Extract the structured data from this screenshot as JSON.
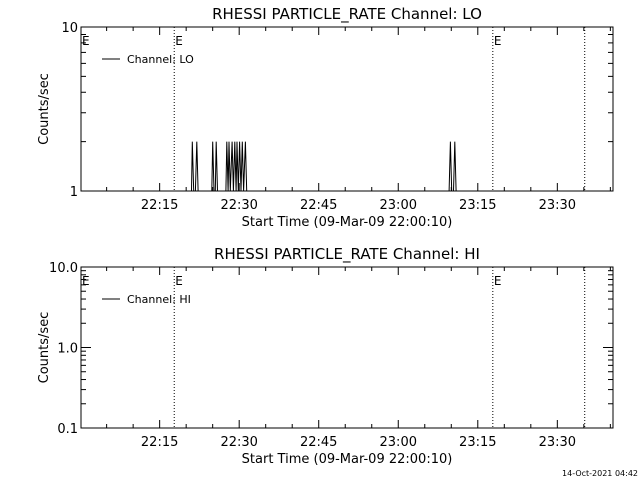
{
  "footer": {
    "timestamp": "14-Oct-2021 04:42"
  },
  "chart_data": [
    {
      "type": "line",
      "title": "RHESSI PARTICLE_RATE Channel: LO",
      "xlabel": "Start Time (09-Mar-09 22:00:10)",
      "ylabel": "Counts/sec",
      "y_scale": "log",
      "ylim": [
        1,
        10
      ],
      "y_ticks": [
        {
          "value": 1,
          "label": "1"
        },
        {
          "value": 10,
          "label": "10"
        }
      ],
      "xlim": [
        "22:00:10",
        "23:40:30"
      ],
      "x_ticks": [
        "22:15",
        "22:30",
        "22:45",
        "23:00",
        "23:15",
        "23:30"
      ],
      "legend": {
        "placement": "top-left",
        "label": "Channel: LO"
      },
      "markers": [
        {
          "time": "22:17:45",
          "label": "E"
        },
        {
          "time": "23:17:50",
          "label": "E"
        },
        {
          "time": "23:35:10",
          "label": ""
        }
      ],
      "edge_label": "E",
      "series": [
        {
          "name": "Channel: LO",
          "points": [
            [
              "22:00:10",
              1
            ],
            [
              "22:21:00",
              1
            ],
            [
              "22:21:10",
              2
            ],
            [
              "22:21:25",
              1
            ],
            [
              "22:21:45",
              1
            ],
            [
              "22:22:00",
              2
            ],
            [
              "22:22:15",
              1
            ],
            [
              "22:24:50",
              1
            ],
            [
              "22:25:00",
              2
            ],
            [
              "22:25:15",
              1
            ],
            [
              "22:25:30",
              1
            ],
            [
              "22:25:40",
              2
            ],
            [
              "22:25:55",
              1
            ],
            [
              "22:27:30",
              1
            ],
            [
              "22:27:40",
              2
            ],
            [
              "22:27:55",
              1
            ],
            [
              "22:28:05",
              2
            ],
            [
              "22:28:20",
              1
            ],
            [
              "22:28:40",
              2
            ],
            [
              "22:28:55",
              1
            ],
            [
              "22:29:10",
              2
            ],
            [
              "22:29:25",
              1
            ],
            [
              "22:29:35",
              2
            ],
            [
              "22:29:50",
              1
            ],
            [
              "22:30:05",
              2
            ],
            [
              "22:30:20",
              1
            ],
            [
              "22:30:35",
              2
            ],
            [
              "22:30:50",
              1
            ],
            [
              "22:31:10",
              2
            ],
            [
              "22:31:25",
              1
            ],
            [
              "23:09:35",
              1
            ],
            [
              "23:09:50",
              2
            ],
            [
              "23:10:05",
              1
            ],
            [
              "23:10:25",
              1
            ],
            [
              "23:10:40",
              2
            ],
            [
              "23:10:55",
              1
            ],
            [
              "23:40:30",
              1
            ]
          ]
        }
      ]
    },
    {
      "type": "line",
      "title": "RHESSI PARTICLE_RATE Channel: HI",
      "xlabel": "Start Time (09-Mar-09 22:00:10)",
      "ylabel": "Counts/sec",
      "y_scale": "log",
      "ylim": [
        0.1,
        10
      ],
      "y_ticks": [
        {
          "value": 0.1,
          "label": "0.1"
        },
        {
          "value": 1,
          "label": "1.0"
        },
        {
          "value": 10,
          "label": "10.0"
        }
      ],
      "xlim": [
        "22:00:10",
        "23:40:30"
      ],
      "x_ticks": [
        "22:15",
        "22:30",
        "22:45",
        "23:00",
        "23:15",
        "23:30"
      ],
      "legend": {
        "placement": "top-left",
        "label": "Channel: HI"
      },
      "markers": [
        {
          "time": "22:17:45",
          "label": "E"
        },
        {
          "time": "23:17:50",
          "label": "E"
        },
        {
          "time": "23:35:10",
          "label": ""
        }
      ],
      "edge_label": "E",
      "series": [
        {
          "name": "Channel: HI",
          "points": []
        }
      ]
    }
  ]
}
